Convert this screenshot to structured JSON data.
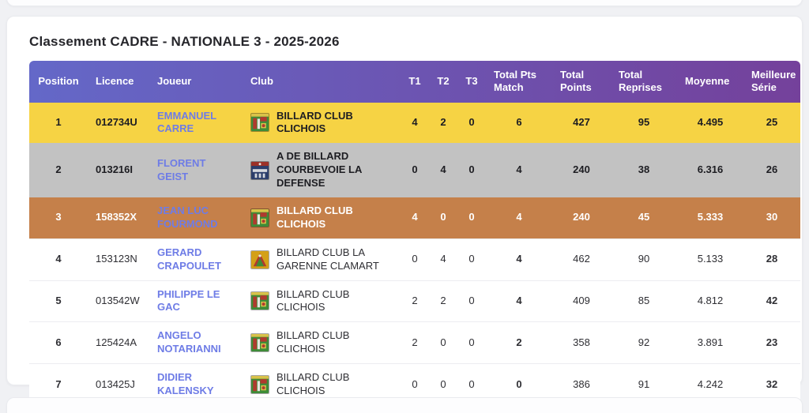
{
  "page": {
    "title": "Classement CADRE - NATIONALE 3 - 2025-2026"
  },
  "table": {
    "columns": [
      {
        "key": "position",
        "label": "Position",
        "align": "center"
      },
      {
        "key": "licence",
        "label": "Licence",
        "align": "left"
      },
      {
        "key": "joueur",
        "label": "Joueur",
        "align": "left"
      },
      {
        "key": "club",
        "label": "Club",
        "align": "left"
      },
      {
        "key": "t1",
        "label": "T1",
        "align": "center"
      },
      {
        "key": "t2",
        "label": "T2",
        "align": "center"
      },
      {
        "key": "t3",
        "label": "T3",
        "align": "center"
      },
      {
        "key": "total_pts_match",
        "label": "Total Pts Match",
        "align": "center"
      },
      {
        "key": "total_points",
        "label": "Total Points",
        "align": "center"
      },
      {
        "key": "total_reprises",
        "label": "Total Reprises",
        "align": "center"
      },
      {
        "key": "moyenne",
        "label": "Moyenne",
        "align": "center"
      },
      {
        "key": "meilleure_serie",
        "label": "Meilleure Série",
        "align": "center"
      }
    ],
    "rows": [
      {
        "position": "1",
        "licence": "012734U",
        "joueur": "EMMANUEL CARRE",
        "club": "BILLARD CLUB CLICHOIS",
        "crest": "billard-club-clichois",
        "t1": "4",
        "t2": "2",
        "t3": "0",
        "total_pts_match": "6",
        "total_points": "427",
        "total_reprises": "95",
        "moyenne": "4.495",
        "meilleure_serie": "25",
        "highlight": "gold"
      },
      {
        "position": "2",
        "licence": "013216I",
        "joueur": "FLORENT GEIST",
        "club": "A DE BILLARD COURBEVOIE LA DEFENSE",
        "crest": "billard-courbevoie-defense",
        "t1": "0",
        "t2": "4",
        "t3": "0",
        "total_pts_match": "4",
        "total_points": "240",
        "total_reprises": "38",
        "moyenne": "6.316",
        "meilleure_serie": "26",
        "highlight": "silver"
      },
      {
        "position": "3",
        "licence": "158352X",
        "joueur": "JEAN LUC FOURMOND",
        "club": "BILLARD CLUB CLICHOIS",
        "crest": "billard-club-clichois",
        "t1": "4",
        "t2": "0",
        "t3": "0",
        "total_pts_match": "4",
        "total_points": "240",
        "total_reprises": "45",
        "moyenne": "5.333",
        "meilleure_serie": "30",
        "highlight": "bronze"
      },
      {
        "position": "4",
        "licence": "153123N",
        "joueur": "GERARD CRAPOULET",
        "club": "BILLARD CLUB LA GARENNE CLAMART",
        "crest": "billard-garenne-clamart",
        "t1": "0",
        "t2": "4",
        "t3": "0",
        "total_pts_match": "4",
        "total_points": "462",
        "total_reprises": "90",
        "moyenne": "5.133",
        "meilleure_serie": "28",
        "highlight": "none"
      },
      {
        "position": "5",
        "licence": "013542W",
        "joueur": "PHILIPPE LE GAC",
        "club": "BILLARD CLUB CLICHOIS",
        "crest": "billard-club-clichois",
        "t1": "2",
        "t2": "2",
        "t3": "0",
        "total_pts_match": "4",
        "total_points": "409",
        "total_reprises": "85",
        "moyenne": "4.812",
        "meilleure_serie": "42",
        "highlight": "none"
      },
      {
        "position": "6",
        "licence": "125424A",
        "joueur": "ANGELO NOTARIANNI",
        "club": "BILLARD CLUB CLICHOIS",
        "crest": "billard-club-clichois",
        "t1": "2",
        "t2": "0",
        "t3": "0",
        "total_pts_match": "2",
        "total_points": "358",
        "total_reprises": "92",
        "moyenne": "3.891",
        "meilleure_serie": "23",
        "highlight": "none"
      },
      {
        "position": "7",
        "licence": "013425J",
        "joueur": "DIDIER KALENSKY",
        "club": "BILLARD CLUB CLICHOIS",
        "crest": "billard-club-clichois",
        "t1": "0",
        "t2": "0",
        "t3": "0",
        "total_pts_match": "0",
        "total_points": "386",
        "total_reprises": "91",
        "moyenne": "4.242",
        "meilleure_serie": "32",
        "highlight": "none"
      }
    ],
    "colors": {
      "header_gradient_start": "#6468c8",
      "header_gradient_end": "#74419b",
      "gold_row": "#f6d344",
      "silver_row": "#c2c2c2",
      "bronze_row": "#c5804a",
      "player_link": "#6e7ce6"
    }
  }
}
